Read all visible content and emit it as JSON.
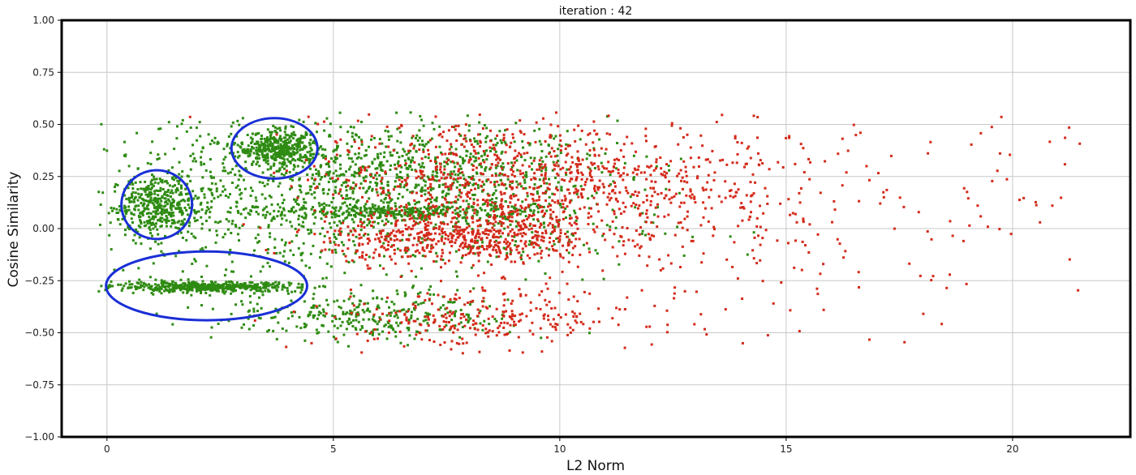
{
  "chart_data": {
    "type": "scatter",
    "title": "iteration : 42",
    "xlabel": "L2 Norm",
    "ylabel": "Cosine Similarity",
    "xlim": [
      -1.0,
      22.6
    ],
    "ylim": [
      -1.0,
      1.0
    ],
    "xticks": [
      0,
      5,
      10,
      15,
      20
    ],
    "yticks": [
      1.0,
      0.75,
      0.5,
      0.25,
      0.0,
      -0.25,
      -0.5,
      -0.75,
      -1.0
    ],
    "xtick_labels": [
      "0",
      "5",
      "10",
      "15",
      "20"
    ],
    "ytick_labels": [
      "1.00",
      "0.75",
      "0.50",
      "0.25",
      "0.00",
      "−0.25",
      "−0.50",
      "−0.75",
      "−1.00"
    ],
    "grid": true,
    "series": [
      {
        "color": "#2e8b12",
        "clusters": [
          {
            "n": 420,
            "cx": 1.1,
            "sx": 0.5,
            "cy": 0.11,
            "sy": 0.07
          },
          {
            "n": 520,
            "cx": 2.2,
            "sx": 1.0,
            "cy": -0.28,
            "sy": 0.012
          },
          {
            "n": 380,
            "cx": 3.8,
            "sx": 0.45,
            "cy": 0.38,
            "sy": 0.04
          },
          {
            "n": 700,
            "cx": 4.0,
            "sx": 2.2,
            "cy": 0.17,
            "sy": 0.2
          },
          {
            "n": 330,
            "cx": 6.5,
            "sx": 1.5,
            "cy": 0.08,
            "sy": 0.02
          },
          {
            "n": 520,
            "cx": 7.2,
            "sx": 2.0,
            "cy": 0.3,
            "sy": 0.1
          },
          {
            "n": 330,
            "cx": 5.8,
            "sx": 1.6,
            "cy": -0.42,
            "sy": 0.06
          },
          {
            "n": 260,
            "cx": 8.0,
            "sx": 2.2,
            "cy": 0.02,
            "sy": 0.14
          }
        ]
      },
      {
        "color": "#d42a1a",
        "clusters": [
          {
            "n": 750,
            "cx": 8.6,
            "sx": 2.0,
            "cy": 0.22,
            "sy": 0.15
          },
          {
            "n": 520,
            "cx": 7.8,
            "sx": 1.5,
            "cy": -0.05,
            "sy": 0.06
          },
          {
            "n": 280,
            "cx": 8.3,
            "sx": 1.8,
            "cy": -0.43,
            "sy": 0.07
          },
          {
            "n": 280,
            "cx": 12.0,
            "sx": 1.8,
            "cy": 0.18,
            "sy": 0.2
          },
          {
            "n": 170,
            "cx": 15.5,
            "sx": 2.6,
            "cy": 0.1,
            "sy": 0.28
          },
          {
            "n": 28,
            "cx": 20.5,
            "sx": 1.2,
            "cy": 0.3,
            "sy": 0.2
          }
        ]
      }
    ],
    "annotations": [
      {
        "type": "ellipse",
        "color": "#1a2fd6",
        "cx": 1.1,
        "cy": 0.115,
        "rx": 0.78,
        "ry": 0.165
      },
      {
        "type": "ellipse",
        "color": "#1a2fd6",
        "cx": 3.7,
        "cy": 0.385,
        "rx": 0.95,
        "ry": 0.145
      },
      {
        "type": "ellipse",
        "color": "#1a2fd6",
        "cx": 2.2,
        "cy": -0.275,
        "rx": 2.22,
        "ry": 0.165
      }
    ]
  }
}
